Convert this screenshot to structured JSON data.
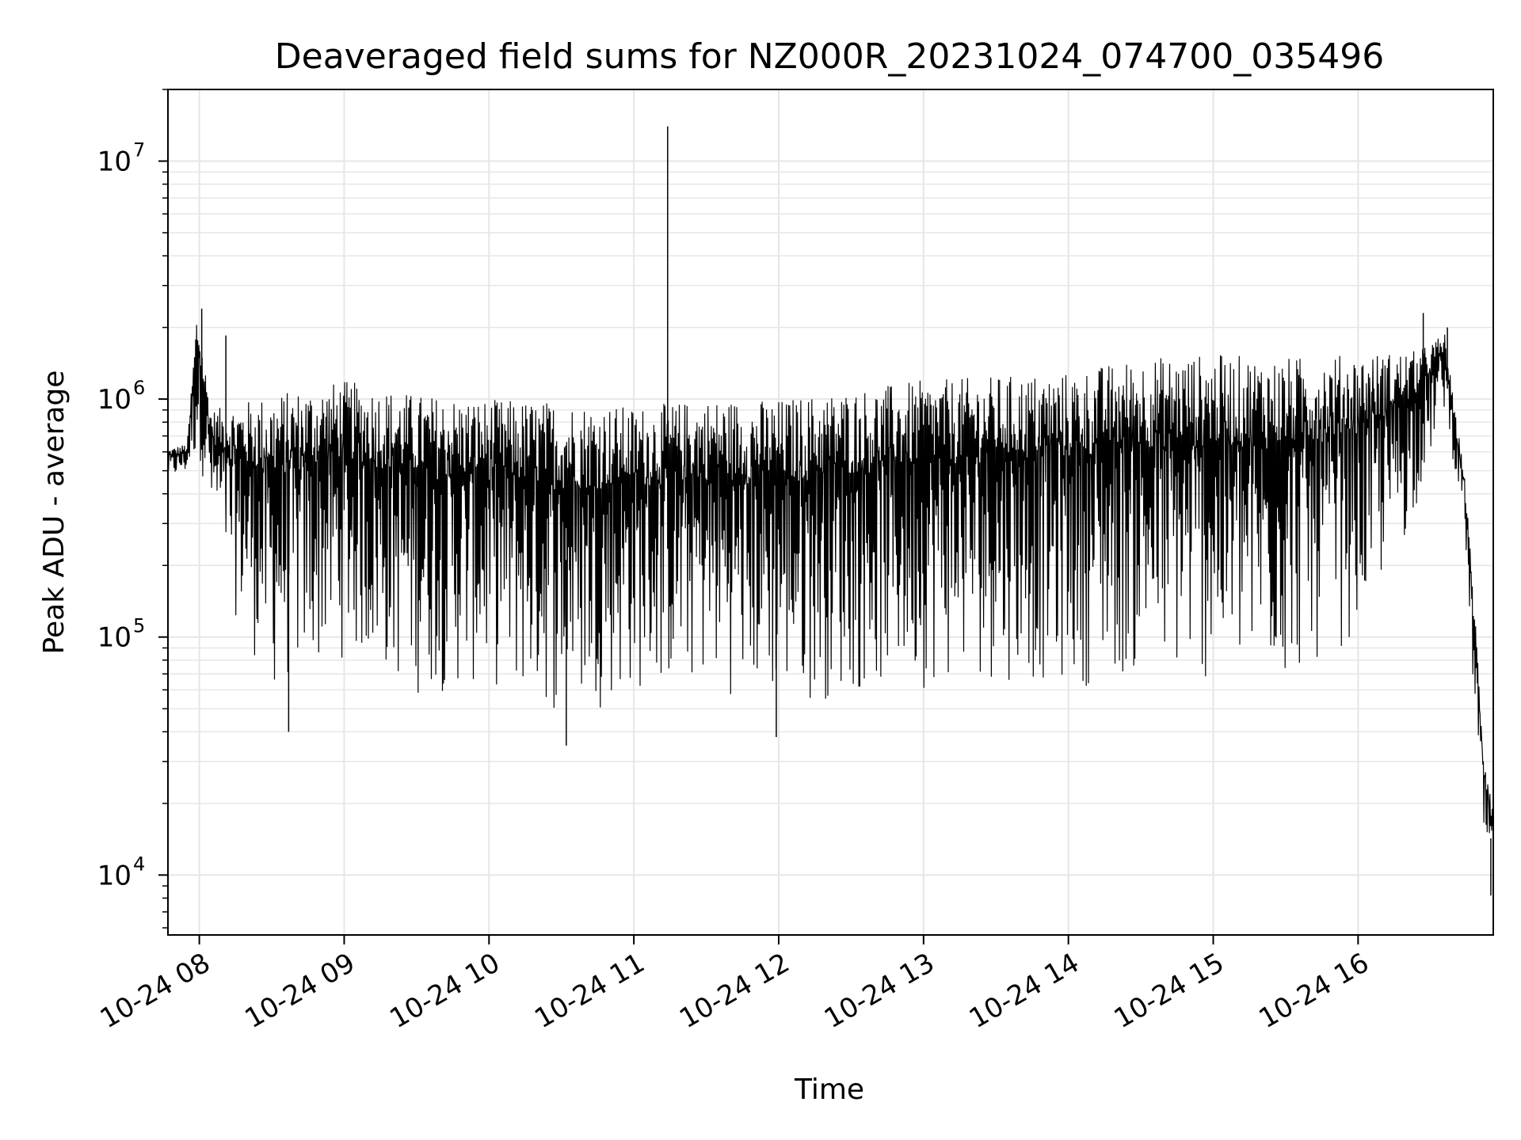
{
  "chart_data": {
    "type": "line",
    "title": "Deaveraged field sums for NZ000R_20231024_074700_035496",
    "xlabel": "Time",
    "ylabel": "Peak ADU - average",
    "yscale": "log",
    "ylim": [
      5600,
      20000000
    ],
    "xlim": [
      "2023-10-24 07:47",
      "2023-10-24 16:56"
    ],
    "grid": true,
    "line_color": "#000000",
    "grid_color": "#e6e6e6",
    "x_ticks": [
      {
        "t": "2023-10-24 08:00",
        "label": "10-24 08"
      },
      {
        "t": "2023-10-24 09:00",
        "label": "10-24 09"
      },
      {
        "t": "2023-10-24 10:00",
        "label": "10-24 10"
      },
      {
        "t": "2023-10-24 11:00",
        "label": "10-24 11"
      },
      {
        "t": "2023-10-24 12:00",
        "label": "10-24 12"
      },
      {
        "t": "2023-10-24 13:00",
        "label": "10-24 13"
      },
      {
        "t": "2023-10-24 14:00",
        "label": "10-24 14"
      },
      {
        "t": "2023-10-24 15:00",
        "label": "10-24 15"
      },
      {
        "t": "2023-10-24 16:00",
        "label": "10-24 16"
      }
    ],
    "y_ticks": [
      {
        "value": 10000,
        "base": "10",
        "exp": "4"
      },
      {
        "value": 100000,
        "base": "10",
        "exp": "5"
      },
      {
        "value": 1000000,
        "base": "10",
        "exp": "6"
      },
      {
        "value": 10000000,
        "base": "10",
        "exp": "7"
      }
    ],
    "series": [
      {
        "upper": [
          {
            "t": "2023-10-24 07:47",
            "v": 620000
          },
          {
            "t": "2023-10-24 07:55",
            "v": 650000
          },
          {
            "t": "2023-10-24 07:59",
            "v": 2400000
          },
          {
            "t": "2023-10-24 08:05",
            "v": 900000
          },
          {
            "t": "2023-10-24 08:30",
            "v": 1050000
          },
          {
            "t": "2023-10-24 09:00",
            "v": 1200000
          },
          {
            "t": "2023-10-24 09:30",
            "v": 1050000
          },
          {
            "t": "2023-10-24 10:00",
            "v": 1000000
          },
          {
            "t": "2023-10-24 10:30",
            "v": 980000
          },
          {
            "t": "2023-10-24 11:00",
            "v": 930000
          },
          {
            "t": "2023-10-24 11:30",
            "v": 1000000
          },
          {
            "t": "2023-10-24 12:00",
            "v": 1000000
          },
          {
            "t": "2023-10-24 12:30",
            "v": 1100000
          },
          {
            "t": "2023-10-24 13:00",
            "v": 1200000
          },
          {
            "t": "2023-10-24 13:30",
            "v": 1250000
          },
          {
            "t": "2023-10-24 14:00",
            "v": 1300000
          },
          {
            "t": "2023-10-24 14:30",
            "v": 1500000
          },
          {
            "t": "2023-10-24 15:00",
            "v": 1550000
          },
          {
            "t": "2023-10-24 15:30",
            "v": 1500000
          },
          {
            "t": "2023-10-24 16:00",
            "v": 1550000
          },
          {
            "t": "2023-10-24 16:25",
            "v": 1600000
          },
          {
            "t": "2023-10-24 16:36",
            "v": 1900000
          },
          {
            "t": "2023-10-24 16:40",
            "v": 900000
          },
          {
            "t": "2023-10-24 16:44",
            "v": 500000
          },
          {
            "t": "2023-10-24 16:48",
            "v": 150000
          },
          {
            "t": "2023-10-24 16:52",
            "v": 35000
          },
          {
            "t": "2023-10-24 16:56",
            "v": 20000
          }
        ],
        "lower": [
          {
            "t": "2023-10-24 07:47",
            "v": 450000
          },
          {
            "t": "2023-10-24 07:55",
            "v": 480000
          },
          {
            "t": "2023-10-24 08:00",
            "v": 550000
          },
          {
            "t": "2023-10-24 08:05",
            "v": 300000
          },
          {
            "t": "2023-10-24 08:15",
            "v": 120000
          },
          {
            "t": "2023-10-24 08:30",
            "v": 55000
          },
          {
            "t": "2023-10-24 09:00",
            "v": 80000
          },
          {
            "t": "2023-10-24 09:30",
            "v": 55000
          },
          {
            "t": "2023-10-24 10:00",
            "v": 60000
          },
          {
            "t": "2023-10-24 10:30",
            "v": 45000
          },
          {
            "t": "2023-10-24 11:00",
            "v": 55000
          },
          {
            "t": "2023-10-24 11:30",
            "v": 60000
          },
          {
            "t": "2023-10-24 12:00",
            "v": 50000
          },
          {
            "t": "2023-10-24 12:30",
            "v": 55000
          },
          {
            "t": "2023-10-24 13:00",
            "v": 60000
          },
          {
            "t": "2023-10-24 13:30",
            "v": 65000
          },
          {
            "t": "2023-10-24 14:00",
            "v": 60000
          },
          {
            "t": "2023-10-24 14:30",
            "v": 65000
          },
          {
            "t": "2023-10-24 15:00",
            "v": 60000
          },
          {
            "t": "2023-10-24 15:30",
            "v": 60000
          },
          {
            "t": "2023-10-24 16:00",
            "v": 100000
          },
          {
            "t": "2023-10-24 16:20",
            "v": 250000
          },
          {
            "t": "2023-10-24 16:36",
            "v": 900000
          },
          {
            "t": "2023-10-24 16:40",
            "v": 500000
          },
          {
            "t": "2023-10-24 16:44",
            "v": 300000
          },
          {
            "t": "2023-10-24 16:48",
            "v": 50000
          },
          {
            "t": "2023-10-24 16:52",
            "v": 12000
          },
          {
            "t": "2023-10-24 16:56",
            "v": 8000
          }
        ],
        "spikes": [
          {
            "t": "2023-10-24 08:01",
            "v": 2400000
          },
          {
            "t": "2023-10-24 08:11",
            "v": 1850000
          },
          {
            "t": "2023-10-24 08:37",
            "v": 40000
          },
          {
            "t": "2023-10-24 10:32",
            "v": 35000
          },
          {
            "t": "2023-10-24 11:14",
            "v": 14000000
          },
          {
            "t": "2023-10-24 11:59",
            "v": 38000
          },
          {
            "t": "2023-10-24 16:27",
            "v": 2300000
          },
          {
            "t": "2023-10-24 16:37",
            "v": 2000000
          },
          {
            "t": "2023-10-24 16:55",
            "v": 8200
          }
        ]
      }
    ]
  }
}
